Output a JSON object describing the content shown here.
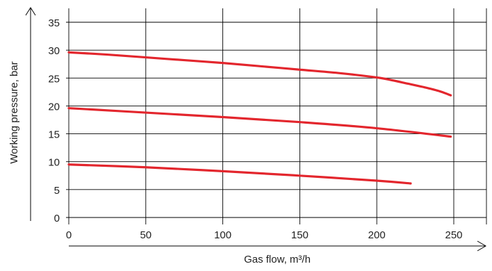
{
  "chart_data": {
    "type": "line",
    "xlabel": "Gas flow, m³/h",
    "ylabel": "Working pressure, bar",
    "xlim": [
      0,
      250
    ],
    "ylim": [
      0,
      35
    ],
    "x_ticks": [
      "0",
      "50",
      "100",
      "150",
      "200",
      "250"
    ],
    "y_ticks": [
      "0",
      "5",
      "10",
      "15",
      "20",
      "25",
      "30",
      "35"
    ],
    "grid": true,
    "series": [
      {
        "color": "#e3262d",
        "x": [
          0,
          25,
          50,
          75,
          100,
          125,
          150,
          175,
          200,
          210,
          220,
          230,
          240,
          248
        ],
        "y": [
          29.6,
          29.2,
          28.7,
          28.2,
          27.7,
          27.1,
          26.5,
          25.9,
          25.1,
          24.6,
          24.0,
          23.4,
          22.7,
          21.9
        ]
      },
      {
        "color": "#e3262d",
        "x": [
          0,
          50,
          100,
          150,
          200,
          248
        ],
        "y": [
          19.6,
          18.8,
          18.0,
          17.1,
          16.0,
          14.5
        ]
      },
      {
        "color": "#e3262d",
        "x": [
          0,
          50,
          100,
          150,
          200,
          222
        ],
        "y": [
          9.5,
          9.0,
          8.3,
          7.5,
          6.6,
          6.1
        ]
      }
    ],
    "colors": {
      "line": "#e3262d",
      "grid": "#000000",
      "text": "#222222"
    }
  }
}
